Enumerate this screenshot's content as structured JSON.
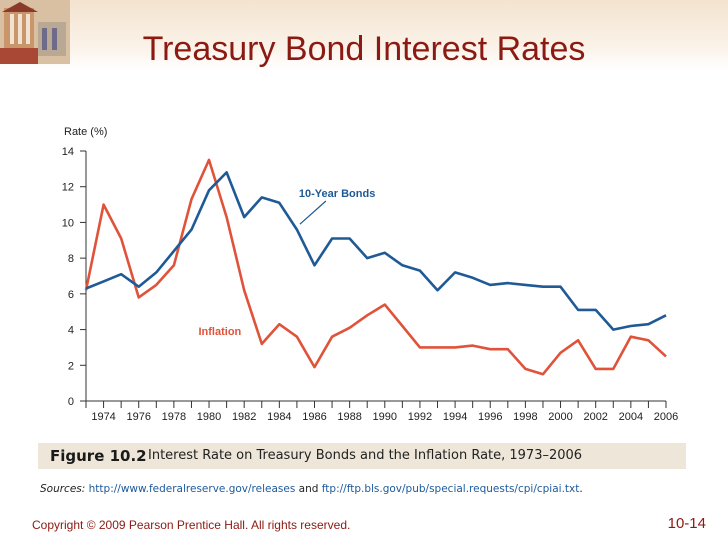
{
  "slide": {
    "title": "Treasury Bond Interest Rates",
    "copyright": "Copyright © 2009 Pearson Prentice Hall. All rights reserved.",
    "slide_number": "10-14"
  },
  "caption": {
    "figure_label": "Figure 10.2",
    "text": "Interest Rate on Treasury Bonds and the Inflation Rate, 1973–2006"
  },
  "sources": {
    "label": "Sources:",
    "url1": "http://www.federalreserve.gov/releases",
    "conj": "and",
    "url2": "ftp://ftp.bls.gov/pub/special.requests/cpi/cpiai.txt",
    "end": "."
  },
  "chart_data": {
    "type": "line",
    "ylabel": "Rate (%)",
    "xlabel": "",
    "title": "",
    "ylim": [
      0,
      14
    ],
    "xlim": [
      1973,
      2006
    ],
    "yticks": [
      0,
      2,
      4,
      6,
      8,
      10,
      12,
      14
    ],
    "xtick_labels": [
      "1974",
      "1976",
      "1978",
      "1980",
      "1982",
      "1984",
      "1986",
      "1988",
      "1990",
      "1992",
      "1994",
      "1996",
      "1998",
      "2000",
      "2002",
      "2004",
      "2006"
    ],
    "series": [
      {
        "name": "10-Year Bonds",
        "color": "#1f5a96",
        "x": [
          1973,
          1974,
          1975,
          1976,
          1977,
          1978,
          1979,
          1980,
          1981,
          1982,
          1983,
          1984,
          1985,
          1986,
          1987,
          1988,
          1989,
          1990,
          1991,
          1992,
          1993,
          1994,
          1995,
          1996,
          1997,
          1998,
          1999,
          2000,
          2001,
          2002,
          2003,
          2004,
          2005,
          2006
        ],
        "y": [
          6.3,
          6.7,
          7.1,
          6.4,
          7.2,
          8.4,
          9.6,
          11.8,
          12.8,
          10.3,
          11.4,
          11.1,
          9.6,
          7.6,
          9.1,
          9.1,
          8.0,
          8.3,
          7.6,
          7.3,
          6.2,
          7.2,
          6.9,
          6.5,
          6.6,
          6.5,
          6.4,
          6.4,
          5.1,
          5.1,
          4.0,
          4.2,
          4.3,
          4.8
        ]
      },
      {
        "name": "Inflation",
        "color": "#e0533a",
        "x": [
          1973,
          1974,
          1975,
          1976,
          1977,
          1978,
          1979,
          1980,
          1981,
          1982,
          1983,
          1984,
          1985,
          1986,
          1987,
          1988,
          1989,
          1990,
          1991,
          1992,
          1993,
          1994,
          1995,
          1996,
          1997,
          1998,
          1999,
          2000,
          2001,
          2002,
          2003,
          2004,
          2005,
          2006
        ],
        "y": [
          6.2,
          11.0,
          9.1,
          5.8,
          6.5,
          7.6,
          11.3,
          13.5,
          10.3,
          6.2,
          3.2,
          4.3,
          3.6,
          1.9,
          3.6,
          4.1,
          4.8,
          5.4,
          4.2,
          3.0,
          3.0,
          3.0,
          3.1,
          2.9,
          2.9,
          1.8,
          1.5,
          2.7,
          3.4,
          1.8,
          1.8,
          3.6,
          3.4,
          2.5
        ]
      }
    ],
    "annotations": [
      {
        "text": "10-Year Bonds",
        "series": "10-Year Bonds",
        "color": "#1f5a96"
      },
      {
        "text": "Inflation",
        "series": "Inflation",
        "color": "#e0533a"
      }
    ],
    "grid": false,
    "legend": "none (inline labels)"
  }
}
